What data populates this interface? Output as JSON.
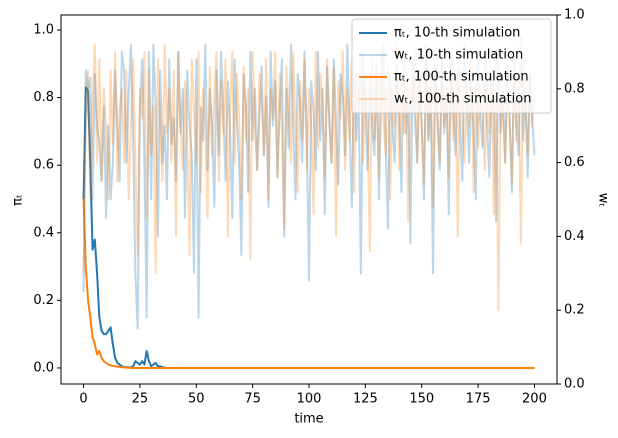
{
  "chart_data": {
    "type": "line",
    "xlabel": "time",
    "ylabel": "πₜ",
    "y2label": "wₜ",
    "xlim": [
      -10,
      210
    ],
    "ylim": [
      -0.0475,
      1.0445
    ],
    "y2lim": [
      0,
      1
    ],
    "xticks": [
      0,
      25,
      50,
      75,
      100,
      125,
      150,
      175,
      200
    ],
    "yticks": [
      {
        "value": 0,
        "label": "0.0"
      },
      0.2,
      0.4,
      0.6,
      0.8,
      {
        "value": 1,
        "label": "1.0"
      }
    ],
    "y2ticks": [
      {
        "value": 0,
        "label": "0.0"
      },
      0.2,
      0.4,
      0.6,
      0.8,
      {
        "value": 1,
        "label": "1.0"
      }
    ],
    "legend": "upper right",
    "x": [
      0,
      1,
      2,
      3,
      4,
      5,
      6,
      7,
      8,
      9,
      10,
      11,
      12,
      13,
      14,
      15,
      16,
      17,
      18,
      19,
      20,
      21,
      22,
      23,
      24,
      25,
      26,
      27,
      28,
      29,
      30,
      31,
      32,
      33,
      34,
      35,
      36,
      37,
      38,
      39,
      40,
      41,
      42,
      43,
      44,
      45,
      46,
      47,
      48,
      49,
      50,
      51,
      52,
      53,
      54,
      55,
      56,
      57,
      58,
      59,
      60,
      61,
      62,
      63,
      64,
      65,
      66,
      67,
      68,
      69,
      70,
      71,
      72,
      73,
      74,
      75,
      76,
      77,
      78,
      79,
      80,
      81,
      82,
      83,
      84,
      85,
      86,
      87,
      88,
      89,
      90,
      91,
      92,
      93,
      94,
      95,
      96,
      97,
      98,
      99,
      100,
      101,
      102,
      103,
      104,
      105,
      106,
      107,
      108,
      109,
      110,
      111,
      112,
      113,
      114,
      115,
      116,
      117,
      118,
      119,
      120,
      121,
      122,
      123,
      124,
      125,
      126,
      127,
      128,
      129,
      130,
      131,
      132,
      133,
      134,
      135,
      136,
      137,
      138,
      139,
      140,
      141,
      142,
      143,
      144,
      145,
      146,
      147,
      148,
      149,
      150,
      151,
      152,
      153,
      154,
      155,
      156,
      157,
      158,
      159,
      160,
      161,
      162,
      163,
      164,
      165,
      166,
      167,
      168,
      169,
      170,
      171,
      172,
      173,
      174,
      175,
      176,
      177,
      178,
      179,
      180,
      181,
      182,
      183,
      184,
      185,
      186,
      187,
      188,
      189,
      190,
      191,
      192,
      193,
      194,
      195,
      196,
      197,
      198,
      199,
      200
    ],
    "series": [
      {
        "name": "πₜ, 10-th simulation",
        "color": "#1f77b4",
        "alpha": 1,
        "axis": "y",
        "values": [
          0.5,
          0.83,
          0.82,
          0.6,
          0.35,
          0.38,
          0.28,
          0.15,
          0.11,
          0.1,
          0.1,
          0.11,
          0.12,
          0.07,
          0.03,
          0.015,
          0.01,
          0.005,
          0.003,
          0.002,
          0.002,
          0.001,
          0.005,
          0.02,
          0.015,
          0.01,
          0.02,
          0.01,
          0.05,
          0.02,
          0.005,
          0.01,
          0.015,
          0.005,
          0.005,
          0.002,
          0.001,
          0,
          0,
          0,
          0,
          0,
          0,
          0,
          0,
          0,
          0,
          0,
          0,
          0,
          0,
          0,
          0,
          0,
          0,
          0,
          0,
          0,
          0,
          0,
          0,
          0,
          0,
          0,
          0,
          0,
          0,
          0,
          0,
          0,
          0,
          0,
          0,
          0,
          0,
          0,
          0,
          0,
          0,
          0,
          0,
          0,
          0,
          0,
          0,
          0,
          0,
          0,
          0,
          0,
          0,
          0,
          0,
          0,
          0,
          0,
          0,
          0,
          0,
          0,
          0,
          0,
          0,
          0,
          0,
          0,
          0,
          0,
          0,
          0,
          0,
          0,
          0,
          0,
          0,
          0,
          0,
          0,
          0,
          0,
          0,
          0,
          0,
          0,
          0,
          0,
          0,
          0,
          0,
          0,
          0,
          0,
          0,
          0,
          0,
          0,
          0,
          0,
          0,
          0,
          0,
          0,
          0,
          0,
          0,
          0,
          0,
          0,
          0,
          0,
          0,
          0,
          0,
          0,
          0,
          0,
          0,
          0,
          0,
          0,
          0,
          0,
          0,
          0,
          0,
          0,
          0,
          0,
          0,
          0,
          0,
          0,
          0,
          0,
          0,
          0,
          0,
          0,
          0,
          0,
          0,
          0,
          0,
          0,
          0,
          0,
          0,
          0,
          0,
          0,
          0,
          0,
          0,
          0,
          0,
          0,
          0,
          0,
          0,
          0,
          0
        ]
      },
      {
        "name": "wₜ, 10-th simulation",
        "color": "#1f77b4",
        "alpha": 0.3,
        "axis": "y2",
        "values": [
          0.25,
          0.85,
          0.8,
          0.83,
          0.5,
          0.84,
          0.7,
          0.65,
          0.55,
          0.75,
          0.45,
          0.7,
          0.5,
          0.6,
          0.85,
          0.7,
          0.55,
          0.9,
          0.85,
          0.6,
          0.78,
          0.92,
          0.65,
          0.3,
          0.15,
          0.75,
          0.88,
          0.6,
          0.18,
          0.9,
          0.5,
          0.92,
          0.75,
          0.4,
          0.85,
          0.6,
          0.7,
          0.5,
          0.88,
          0.65,
          0.72,
          0.55,
          0.9,
          0.68,
          0.8,
          0.45,
          0.85,
          0.7,
          0.62,
          0.3,
          0.88,
          0.18,
          0.75,
          0.66,
          0.92,
          0.58,
          0.8,
          0.7,
          0.48,
          0.85,
          0.62,
          0.9,
          0.74,
          0.55,
          0.82,
          0.68,
          0.45,
          0.88,
          0.72,
          0.6,
          0.35,
          0.84,
          0.76,
          0.52,
          0.9,
          0.66,
          0.8,
          0.58,
          0.72,
          0.86,
          0.62,
          0.78,
          0.48,
          0.9,
          0.7,
          0.82,
          0.56,
          0.74,
          0.88,
          0.4,
          0.8,
          0.64,
          0.92,
          0.7,
          0.5,
          0.84,
          0.76,
          0.6,
          0.9,
          0.68,
          0.28,
          0.82,
          0.74,
          0.58,
          0.9,
          0.66,
          0.8,
          0.46,
          0.86,
          0.72,
          0.6,
          0.88,
          0.7,
          0.54,
          0.84,
          0.78,
          0.62,
          0.92,
          0.7,
          0.48,
          0.86,
          0.66,
          0.8,
          0.3,
          0.9,
          0.74,
          0.58,
          0.84,
          0.7,
          0.62,
          0.88,
          0.5,
          0.78,
          0.92,
          0.66,
          0.42,
          0.84,
          0.7,
          0.6,
          0.86,
          0.74,
          0.52,
          0.9,
          0.68,
          0.8,
          0.38,
          0.88,
          0.72,
          0.6,
          0.84,
          0.7,
          0.5,
          0.92,
          0.66,
          0.78,
          0.3,
          0.86,
          0.72,
          0.58,
          0.88,
          0.68,
          0.8,
          0.46,
          0.9,
          0.74,
          0.62,
          0.86,
          0.7,
          0.55,
          0.92,
          0.76,
          0.6,
          0.84,
          0.68,
          0.5,
          0.88,
          0.72,
          0.64,
          0.9,
          0.7,
          0.56,
          0.84,
          0.76,
          0.44,
          0.9,
          0.68,
          0.8,
          0.6,
          0.86,
          0.72,
          0.52,
          0.88,
          0.7,
          0.62,
          0.94,
          0.66,
          0.8,
          0.56,
          0.84,
          0.72,
          0.62
        ]
      },
      {
        "name": "πₜ, 100-th simulation",
        "color": "#ff7f0e",
        "alpha": 1,
        "axis": "y",
        "values": [
          0.5,
          0.3,
          0.2,
          0.15,
          0.09,
          0.07,
          0.04,
          0.05,
          0.03,
          0.02,
          0.015,
          0.01,
          0.008,
          0.006,
          0.005,
          0.004,
          0.003,
          0.002,
          0.002,
          0.001,
          0.001,
          0,
          0,
          0,
          0,
          0,
          0,
          0,
          0,
          0,
          0,
          0,
          0,
          0,
          0,
          0,
          0,
          0,
          0,
          0,
          0,
          0,
          0,
          0,
          0,
          0,
          0,
          0,
          0,
          0,
          0,
          0,
          0,
          0,
          0,
          0,
          0,
          0,
          0,
          0,
          0,
          0,
          0,
          0,
          0,
          0,
          0,
          0,
          0,
          0,
          0,
          0,
          0,
          0,
          0,
          0,
          0,
          0,
          0,
          0,
          0,
          0,
          0,
          0,
          0,
          0,
          0,
          0,
          0,
          0,
          0,
          0,
          0,
          0,
          0,
          0,
          0,
          0,
          0,
          0,
          0,
          0,
          0,
          0,
          0,
          0,
          0,
          0,
          0,
          0,
          0,
          0,
          0,
          0,
          0,
          0,
          0,
          0,
          0,
          0,
          0,
          0,
          0,
          0,
          0,
          0,
          0,
          0,
          0,
          0,
          0,
          0,
          0,
          0,
          0,
          0,
          0,
          0,
          0,
          0,
          0,
          0,
          0,
          0,
          0,
          0,
          0,
          0,
          0,
          0,
          0,
          0,
          0,
          0,
          0,
          0,
          0,
          0,
          0,
          0,
          0,
          0,
          0,
          0,
          0,
          0,
          0,
          0,
          0,
          0,
          0,
          0,
          0,
          0,
          0,
          0,
          0,
          0,
          0,
          0,
          0,
          0,
          0,
          0,
          0,
          0,
          0,
          0,
          0,
          0,
          0,
          0,
          0,
          0,
          0,
          0,
          0,
          0,
          0,
          0,
          0
        ]
      },
      {
        "name": "wₜ, 100-th simulation",
        "color": "#ff7f0e",
        "alpha": 0.3,
        "axis": "y2",
        "values": [
          0.3,
          0.7,
          0.85,
          0.5,
          0.75,
          0.92,
          0.6,
          0.88,
          0.55,
          0.8,
          0.7,
          0.5,
          0.85,
          0.65,
          0.9,
          0.55,
          0.75,
          0.8,
          0.6,
          0.85,
          0.5,
          0.7,
          0.88,
          0.6,
          0.35,
          0.8,
          0.72,
          0.9,
          0.45,
          0.85,
          0.62,
          0.75,
          0.3,
          0.88,
          0.7,
          0.55,
          0.92,
          0.68,
          0.8,
          0.6,
          0.85,
          0.4,
          0.9,
          0.7,
          0.58,
          0.82,
          0.66,
          0.35,
          0.88,
          0.74,
          0.6,
          0.9,
          0.52,
          0.8,
          0.7,
          0.45,
          0.86,
          0.62,
          0.78,
          0.9,
          0.55,
          0.82,
          0.68,
          0.88,
          0.4,
          0.76,
          0.9,
          0.6,
          0.84,
          0.72,
          0.5,
          0.86,
          0.66,
          0.8,
          0.34,
          0.9,
          0.7,
          0.58,
          0.84,
          0.76,
          0.62,
          0.88,
          0.5,
          0.8,
          0.72,
          0.9,
          0.56,
          0.84,
          0.68,
          0.42,
          0.86,
          0.74,
          0.6,
          0.9,
          0.7,
          0.52,
          0.82,
          0.66,
          0.88,
          0.58,
          0.8,
          0.7,
          0.46,
          0.9,
          0.64,
          0.84,
          0.76,
          0.56,
          0.88,
          0.7,
          0.6,
          0.86,
          0.4,
          0.82,
          0.72,
          0.9,
          0.58,
          0.8,
          0.66,
          0.88,
          0.52,
          0.84,
          0.74,
          0.9,
          0.6,
          0.8,
          0.7,
          0.36,
          0.88,
          0.66,
          0.82,
          0.56,
          0.9,
          0.72,
          0.62,
          0.86,
          0.5,
          0.8,
          0.7,
          0.92,
          0.58,
          0.84,
          0.68,
          0.88,
          0.44,
          0.8,
          0.74,
          0.9,
          0.6,
          0.82,
          0.7,
          0.54,
          0.88,
          0.66,
          0.84,
          0.48,
          0.9,
          0.72,
          0.6,
          0.86,
          0.7,
          0.8,
          0.56,
          0.9,
          0.66,
          0.84,
          0.4,
          0.88,
          0.74,
          0.6,
          0.82,
          0.7,
          0.9,
          0.52,
          0.86,
          0.64,
          0.8,
          0.72,
          0.58,
          0.88,
          0.68,
          0.84,
          0.46,
          0.9,
          0.2,
          0.8,
          0.72,
          0.6,
          0.86,
          0.7,
          0.54,
          0.88,
          0.66,
          0.82,
          0.38,
          0.9,
          0.74,
          0.62,
          0.84,
          0.7,
          0.8
        ]
      }
    ]
  }
}
